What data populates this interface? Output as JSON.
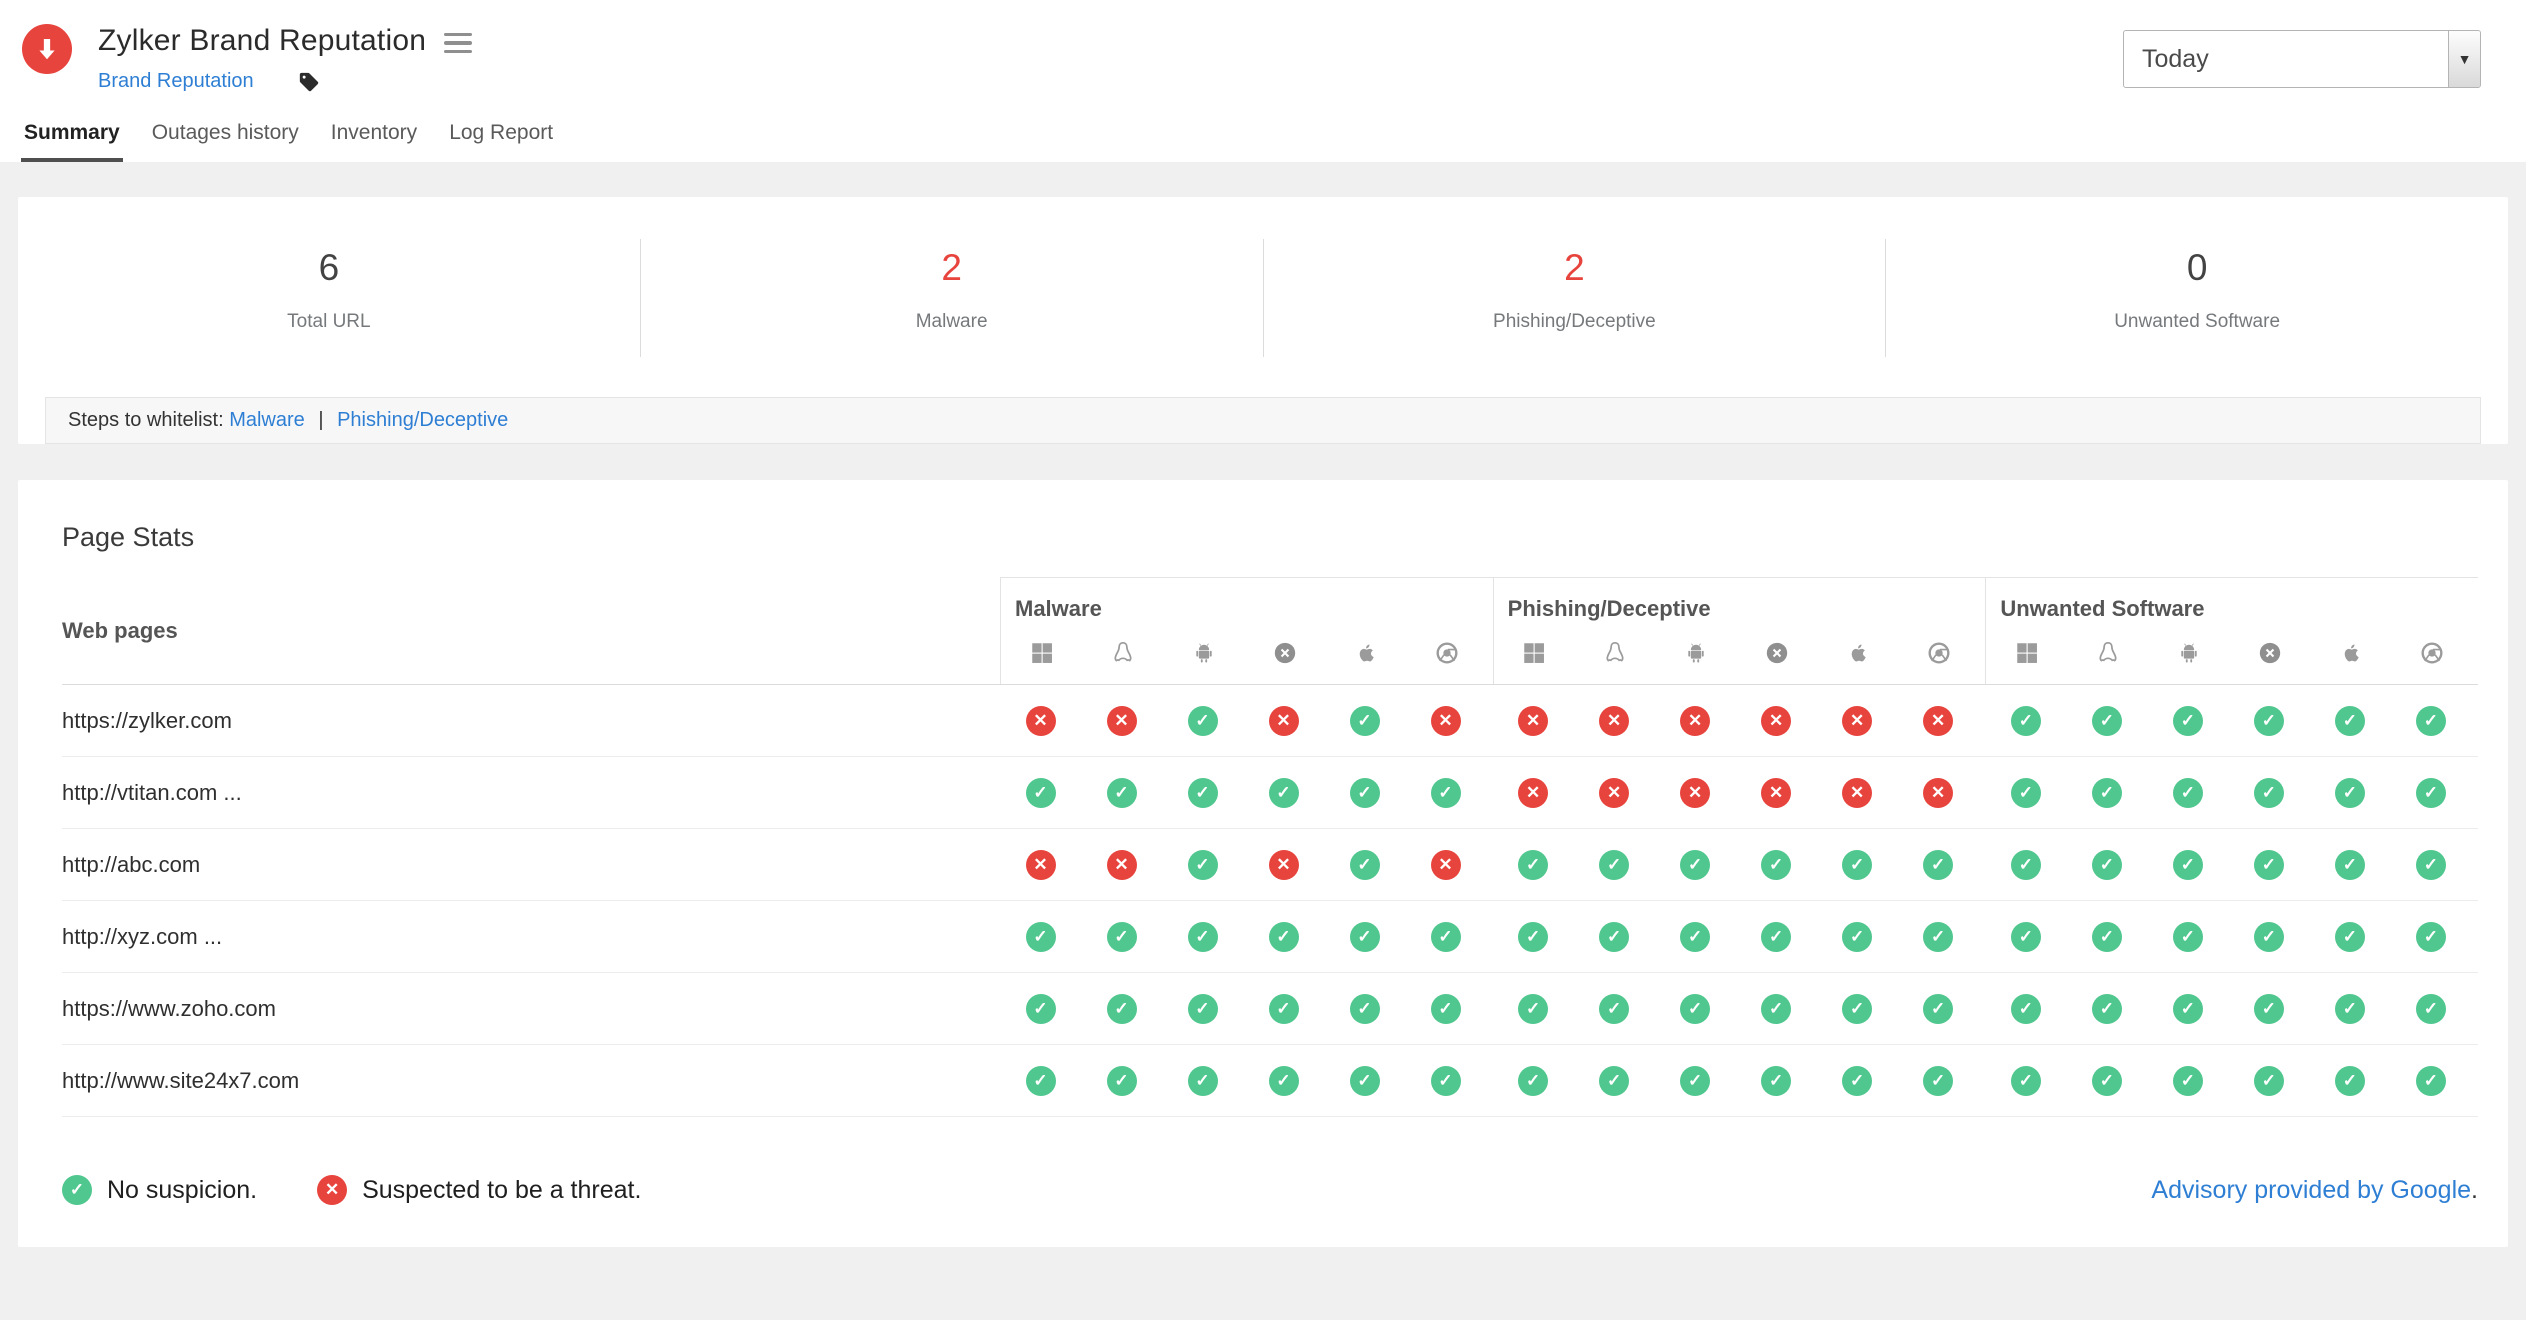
{
  "header": {
    "title": "Zylker Brand Reputation",
    "breadcrumb": "Brand Reputation",
    "date_range": "Today"
  },
  "tabs": [
    {
      "label": "Summary",
      "active": true
    },
    {
      "label": "Outages history",
      "active": false
    },
    {
      "label": "Inventory",
      "active": false
    },
    {
      "label": "Log Report",
      "active": false
    }
  ],
  "summary": {
    "stats": [
      {
        "value": "6",
        "label": "Total URL",
        "color": "#434343"
      },
      {
        "value": "2",
        "label": "Malware",
        "color": "#e8443e"
      },
      {
        "value": "2",
        "label": "Phishing/Deceptive",
        "color": "#e8443e"
      },
      {
        "value": "0",
        "label": "Unwanted Software",
        "color": "#434343"
      }
    ],
    "whitelist": {
      "prefix": "Steps to whitelist:",
      "links": [
        "Malware",
        "Phishing/Deceptive"
      ],
      "separator": "|"
    }
  },
  "page_stats": {
    "title": "Page Stats",
    "web_pages_label": "Web pages",
    "groups": [
      "Malware",
      "Phishing/Deceptive",
      "Unwanted Software"
    ],
    "platforms": [
      "windows",
      "linux",
      "android",
      "osx",
      "apple",
      "chrome"
    ],
    "rows": [
      {
        "url": "https://zylker.com",
        "statuses": [
          [
            "threat",
            "threat",
            "ok",
            "threat",
            "ok",
            "threat"
          ],
          [
            "threat",
            "threat",
            "threat",
            "threat",
            "threat",
            "threat"
          ],
          [
            "ok",
            "ok",
            "ok",
            "ok",
            "ok",
            "ok"
          ]
        ]
      },
      {
        "url": "http://vtitan.com ...",
        "statuses": [
          [
            "ok",
            "ok",
            "ok",
            "ok",
            "ok",
            "ok"
          ],
          [
            "threat",
            "threat",
            "threat",
            "threat",
            "threat",
            "threat"
          ],
          [
            "ok",
            "ok",
            "ok",
            "ok",
            "ok",
            "ok"
          ]
        ]
      },
      {
        "url": "http://abc.com",
        "statuses": [
          [
            "threat",
            "threat",
            "ok",
            "threat",
            "ok",
            "threat"
          ],
          [
            "ok",
            "ok",
            "ok",
            "ok",
            "ok",
            "ok"
          ],
          [
            "ok",
            "ok",
            "ok",
            "ok",
            "ok",
            "ok"
          ]
        ]
      },
      {
        "url": "http://xyz.com ...",
        "statuses": [
          [
            "ok",
            "ok",
            "ok",
            "ok",
            "ok",
            "ok"
          ],
          [
            "ok",
            "ok",
            "ok",
            "ok",
            "ok",
            "ok"
          ],
          [
            "ok",
            "ok",
            "ok",
            "ok",
            "ok",
            "ok"
          ]
        ]
      },
      {
        "url": "https://www.zoho.com",
        "statuses": [
          [
            "ok",
            "ok",
            "ok",
            "ok",
            "ok",
            "ok"
          ],
          [
            "ok",
            "ok",
            "ok",
            "ok",
            "ok",
            "ok"
          ],
          [
            "ok",
            "ok",
            "ok",
            "ok",
            "ok",
            "ok"
          ]
        ]
      },
      {
        "url": "http://www.site24x7.com",
        "statuses": [
          [
            "ok",
            "ok",
            "ok",
            "ok",
            "ok",
            "ok"
          ],
          [
            "ok",
            "ok",
            "ok",
            "ok",
            "ok",
            "ok"
          ],
          [
            "ok",
            "ok",
            "ok",
            "ok",
            "ok",
            "ok"
          ]
        ]
      }
    ],
    "legend": [
      {
        "icon": "no-suspicion-icon",
        "label": "No suspicion."
      },
      {
        "icon": "threat-icon",
        "label": "Suspected to be a threat."
      }
    ],
    "advisory": {
      "link": "Advisory provided by Google",
      "suffix": "."
    }
  },
  "colors": {
    "ok": "#50c78e",
    "threat": "#e8443e",
    "link": "#2e7fd4"
  }
}
